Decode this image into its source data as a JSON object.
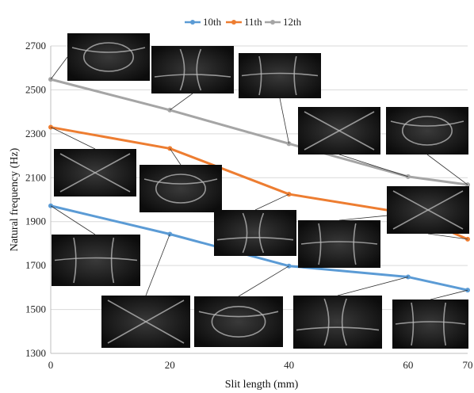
{
  "chart_data": {
    "type": "line",
    "title": "",
    "xlabel": "Slit length (mm)",
    "ylabel": "Natural frequency (Hz)",
    "x": [
      0,
      20,
      40,
      60,
      70
    ],
    "x_ticks": [
      "0",
      "20",
      "40",
      "60",
      "70"
    ],
    "ylim": [
      1300,
      2700
    ],
    "y_ticks": [
      1300,
      1500,
      1700,
      1900,
      2100,
      2300,
      2500,
      2700
    ],
    "grid": true,
    "legend_position": "top-center",
    "series": [
      {
        "name": "10th",
        "color": "#5b9bd5",
        "values": [
          1972,
          1843,
          1698,
          1648,
          1588
        ]
      },
      {
        "name": "11th",
        "color": "#ed7d31",
        "values": [
          2330,
          2233,
          2025,
          1937,
          1820
        ]
      },
      {
        "name": "12th",
        "color": "#a5a5a5",
        "values": [
          2548,
          2408,
          2255,
          2105,
          2068
        ]
      }
    ],
    "inset_images": {
      "description": "Chladni-style mode-shape photographs attached to each data point",
      "count": 15
    }
  }
}
